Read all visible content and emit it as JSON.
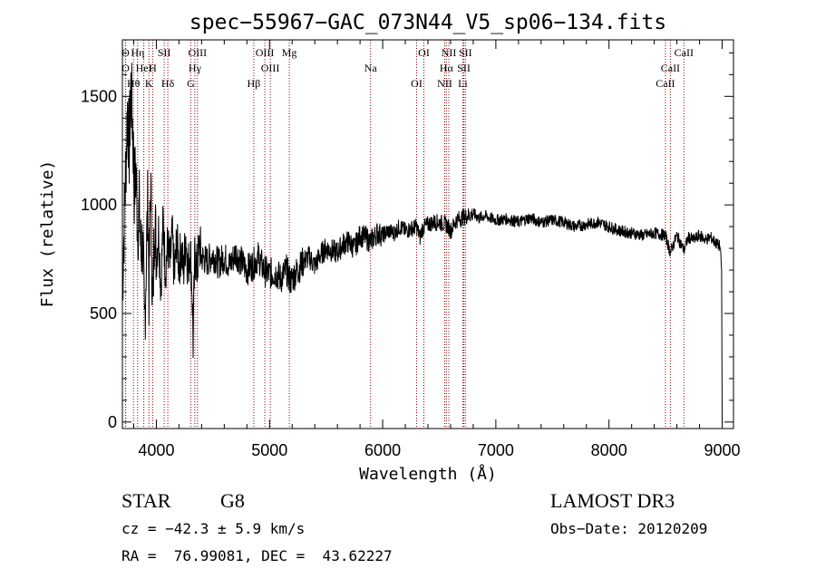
{
  "chart_data": {
    "type": "line",
    "title": "spec−55967−GAC_073N44_V5_sp06−134.fits",
    "xlabel": "Wavelength (Å)",
    "ylabel": "Flux (relative)",
    "xlim": [
      3700,
      9100
    ],
    "ylim": [
      -30,
      1760
    ],
    "x_ticks": [
      4000,
      5000,
      6000,
      7000,
      8000,
      9000
    ],
    "y_ticks": [
      0,
      500,
      1000,
      1500
    ],
    "series": [
      {
        "name": "flux",
        "x": [
          3700,
          3715,
          3730,
          3745,
          3760,
          3775,
          3790,
          3805,
          3820,
          3835,
          3850,
          3865,
          3880,
          3895,
          3910,
          3925,
          3935,
          3950,
          3968,
          3985,
          4000,
          4020,
          4040,
          4060,
          4080,
          4101,
          4120,
          4140,
          4160,
          4180,
          4200,
          4220,
          4240,
          4260,
          4280,
          4300,
          4315,
          4325,
          4340,
          4360,
          4380,
          4400,
          4450,
          4500,
          4550,
          4600,
          4650,
          4700,
          4750,
          4800,
          4861,
          4900,
          4950,
          5000,
          5050,
          5100,
          5150,
          5184,
          5250,
          5300,
          5350,
          5400,
          5450,
          5500,
          5550,
          5600,
          5650,
          5700,
          5750,
          5800,
          5850,
          5893,
          5950,
          6000,
          6050,
          6100,
          6150,
          6200,
          6250,
          6300,
          6330,
          6350,
          6400,
          6450,
          6500,
          6563,
          6600,
          6650,
          6700,
          6750,
          6800,
          6850,
          6900,
          6950,
          7000,
          7100,
          7200,
          7300,
          7400,
          7500,
          7600,
          7700,
          7800,
          7900,
          8000,
          8100,
          8200,
          8300,
          8400,
          8498,
          8542,
          8600,
          8662,
          8700,
          8750,
          8800,
          8850,
          8900,
          8950,
          8980,
          8995,
          9000
        ],
        "values": [
          620,
          900,
          1180,
          1450,
          1250,
          1540,
          1380,
          1080,
          1150,
          900,
          980,
          760,
          840,
          420,
          720,
          1030,
          610,
          1120,
          480,
          980,
          760,
          880,
          620,
          930,
          700,
          820,
          720,
          860,
          660,
          840,
          720,
          800,
          690,
          860,
          700,
          810,
          620,
          360,
          780,
          700,
          820,
          760,
          740,
          770,
          730,
          760,
          720,
          780,
          740,
          700,
          730,
          760,
          700,
          680,
          690,
          660,
          700,
          650,
          700,
          740,
          760,
          720,
          770,
          800,
          790,
          780,
          820,
          830,
          800,
          860,
          850,
          830,
          870,
          860,
          880,
          870,
          900,
          880,
          890,
          900,
          850,
          890,
          910,
          920,
          920,
          910,
          880,
          930,
          940,
          950,
          960,
          940,
          950,
          940,
          930,
          935,
          920,
          940,
          920,
          930,
          920,
          900,
          910,
          920,
          900,
          880,
          870,
          860,
          870,
          860,
          780,
          860,
          790,
          850,
          840,
          860,
          840,
          850,
          820,
          810,
          700,
          0
        ]
      }
    ],
    "spectral_lines": [
      {
        "name": "O",
        "wavelength": 3727
      },
      {
        "name": "O",
        "wavelength": 3729
      },
      {
        "name": "Hθ",
        "wavelength": 3798
      },
      {
        "name": "Hη",
        "wavelength": 3835
      },
      {
        "name": "HeI",
        "wavelength": 3889
      },
      {
        "name": "K",
        "wavelength": 3934
      },
      {
        "name": "SII",
        "wavelength": 4069
      },
      {
        "name": "H",
        "wavelength": 3968
      },
      {
        "name": "Hδ",
        "wavelength": 4101
      },
      {
        "name": "OIII",
        "wavelength": 4363
      },
      {
        "name": "Hγ",
        "wavelength": 4340
      },
      {
        "name": "G",
        "wavelength": 4304
      },
      {
        "name": "OIII",
        "wavelength": 4959
      },
      {
        "name": "OIII",
        "wavelength": 5007
      },
      {
        "name": "Hβ",
        "wavelength": 4861
      },
      {
        "name": "Mg",
        "wavelength": 5175
      },
      {
        "name": "Na",
        "wavelength": 5893
      },
      {
        "name": "OI",
        "wavelength": 6300
      },
      {
        "name": "OI",
        "wavelength": 6364
      },
      {
        "name": "Hα",
        "wavelength": 6563
      },
      {
        "name": "NII",
        "wavelength": 6548
      },
      {
        "name": "NII",
        "wavelength": 6584
      },
      {
        "name": "SII",
        "wavelength": 6717
      },
      {
        "name": "Li",
        "wavelength": 6708
      },
      {
        "name": "SII",
        "wavelength": 6731
      },
      {
        "name": "CaII",
        "wavelength": 8542
      },
      {
        "name": "CaII",
        "wavelength": 8498
      },
      {
        "name": "CaII",
        "wavelength": 8662
      }
    ]
  },
  "info": {
    "class": "STAR",
    "subclass": "G8",
    "survey": "LAMOST DR3",
    "cz": "cz = −42.3 ± 5.9 km/s",
    "obs_date": "Obs−Date: 20120209",
    "coords": "RA =  76.99081, DEC =  43.62227"
  },
  "colors": {
    "line": "#000000",
    "marker_lines": "#8b0000",
    "axes": "#000000",
    "background": "#ffffff"
  }
}
